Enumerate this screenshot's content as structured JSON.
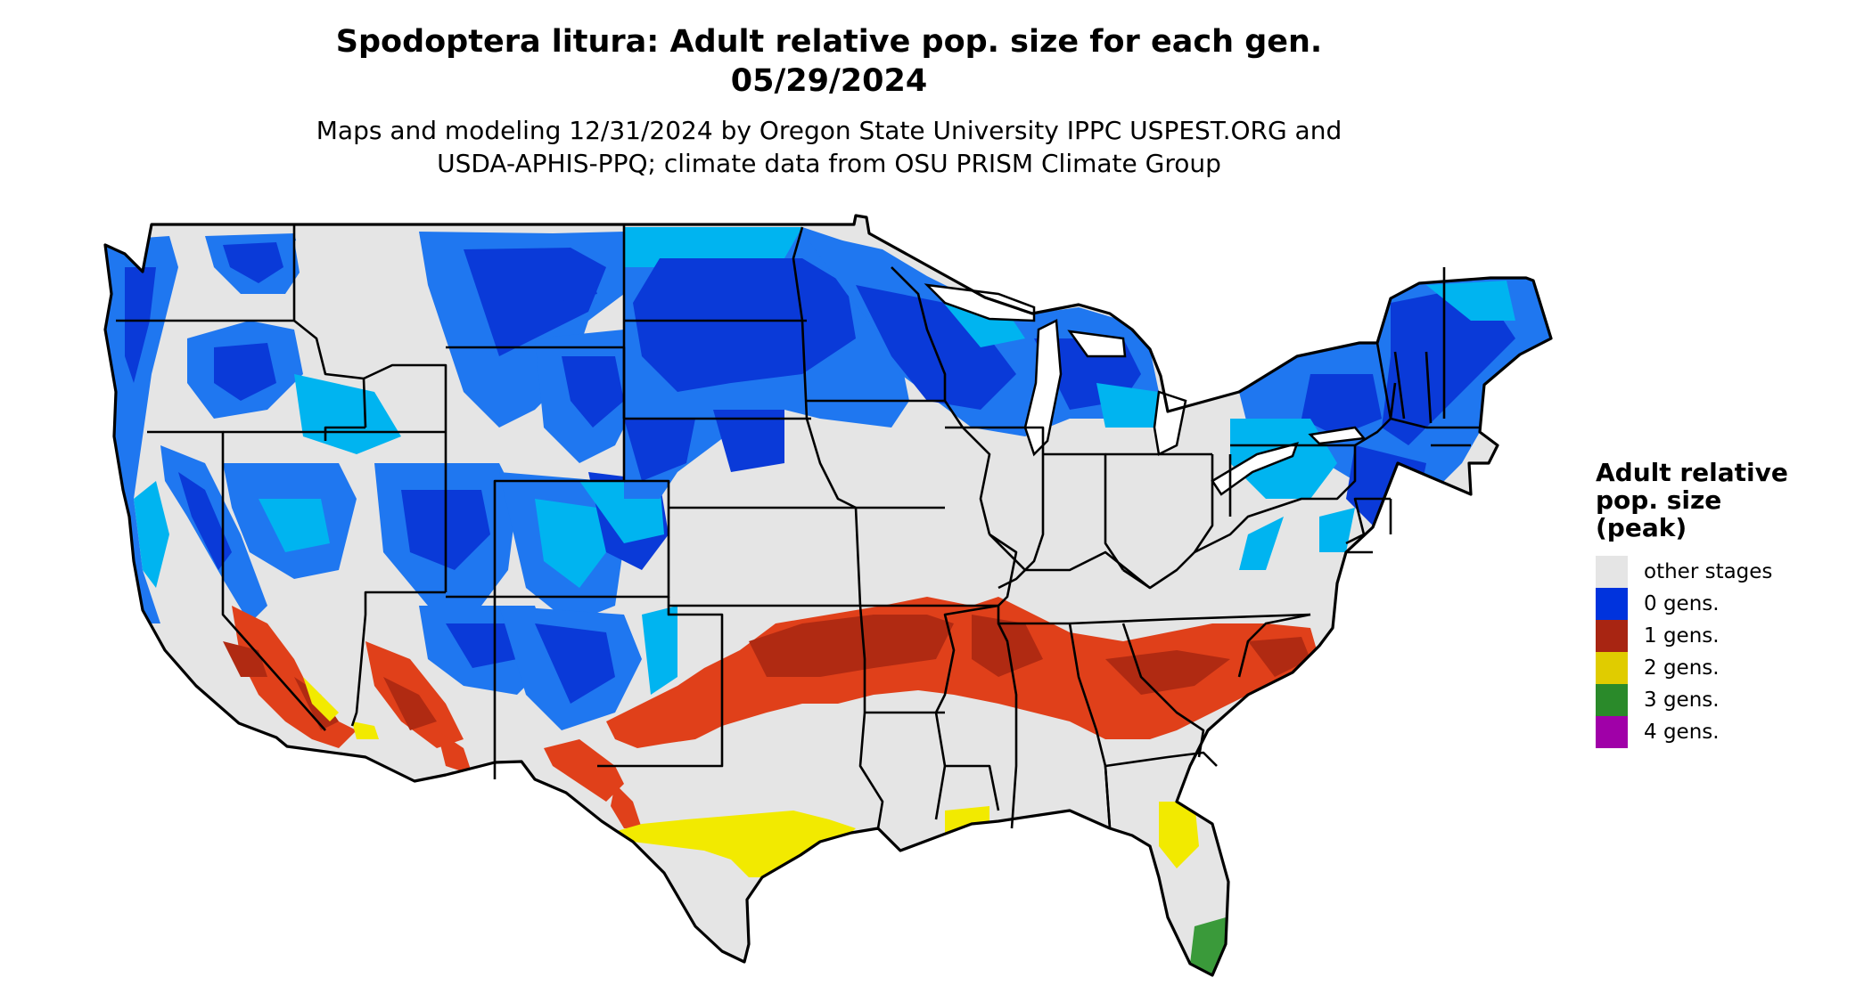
{
  "title": {
    "line1": "Spodoptera litura: Adult relative pop. size for each gen.",
    "line2": "05/29/2024"
  },
  "subtitle": {
    "line1": "Maps and modeling 12/31/2024 by Oregon State University IPPC USPEST.ORG and",
    "line2": "USDA-APHIS-PPQ; climate data from OSU PRISM Climate Group"
  },
  "legend": {
    "title_lines": [
      "Adult relative",
      "pop. size",
      "(peak)"
    ],
    "items": [
      {
        "label": "other stages",
        "color": "#e5e5e5"
      },
      {
        "label": "0 gens.",
        "color": "#0033dd"
      },
      {
        "label": "1 gens.",
        "color": "#a82512"
      },
      {
        "label": "2 gens.",
        "color": "#e0cc00"
      },
      {
        "label": "3 gens.",
        "color": "#2a8a2a"
      },
      {
        "label": "4 gens.",
        "color": "#a000a8"
      }
    ]
  },
  "map_colors": {
    "land": "#e5e5e5",
    "light_blue": "#00b4f0",
    "mid_blue": "#1f77f0",
    "dark_blue": "#0a3ad8",
    "orange_red": "#e0401a",
    "dark_red": "#b02a12",
    "yellow": "#f2ea00",
    "green": "#3a9a3a",
    "border": "#000000"
  }
}
